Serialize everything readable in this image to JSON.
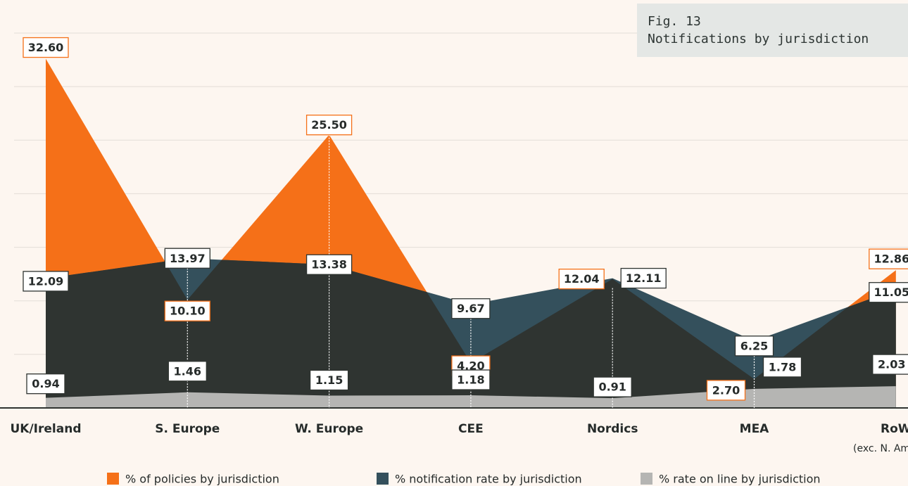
{
  "chart_data": {
    "type": "area",
    "title": "Fig. 13",
    "subtitle": "Notifications by jurisdiction",
    "categories": [
      "UK/Ireland",
      "S. Europe",
      "W. Europe",
      "CEE",
      "Nordics",
      "MEA",
      "RoW"
    ],
    "category_note": "(exc. N. America)",
    "ylim": [
      0,
      35
    ],
    "yticks": [
      0,
      5,
      10,
      15,
      20,
      25,
      30,
      35
    ],
    "grid": true,
    "series": [
      {
        "name": "% of policies by jurisdiction",
        "color": "#f57018",
        "values": [
          32.6,
          10.1,
          25.5,
          4.2,
          12.04,
          2.7,
          12.86
        ],
        "value_labels": [
          "32.60",
          "10.10",
          "25.50",
          "4.20",
          "12.04",
          "2.70",
          "12.86"
        ]
      },
      {
        "name": "% notification rate by jurisdiction",
        "color": "#34505c",
        "values": [
          12.09,
          13.97,
          13.38,
          9.67,
          12.11,
          6.25,
          11.05
        ],
        "value_labels": [
          "12.09",
          "13.97",
          "13.38",
          "9.67",
          "12.11",
          "6.25",
          "11.05"
        ]
      },
      {
        "name": "% rate on line by jurisdiction",
        "color": "#b5b5b3",
        "values": [
          0.94,
          1.46,
          1.15,
          1.18,
          0.91,
          1.78,
          2.03
        ],
        "value_labels": [
          "0.94",
          "1.46",
          "1.15",
          "1.18",
          "0.91",
          "1.78",
          "2.03"
        ]
      }
    ]
  }
}
